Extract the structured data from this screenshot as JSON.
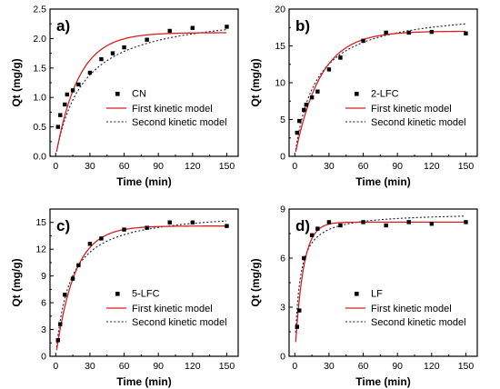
{
  "legend_labels": {
    "first": "First kinetic model",
    "second": "Second kinetic model"
  },
  "colors": {
    "first": "#d62020",
    "second": "#1a1a40",
    "points": "#000000"
  },
  "chart_data": [
    {
      "type": "scatter",
      "panel_label": "a)",
      "series_name": "CN",
      "xlabel": "Time (min)",
      "ylabel": "Qt (mg/g)",
      "xlim": [
        -5,
        160
      ],
      "ylim": [
        0,
        2.5
      ],
      "x_ticks": [
        0,
        30,
        60,
        90,
        120,
        150
      ],
      "y_ticks": [
        0.0,
        0.5,
        1.0,
        1.5,
        2.0,
        2.5
      ],
      "y_tick_labels": [
        "0.0",
        "0.5",
        "1.0",
        "1.5",
        "2.0",
        "2.5"
      ],
      "legend_position": "center-right",
      "points": {
        "x": [
          2,
          4,
          8,
          10,
          15,
          20,
          30,
          40,
          50,
          60,
          80,
          100,
          120,
          150
        ],
        "y": [
          0.5,
          0.7,
          0.88,
          1.05,
          1.12,
          1.22,
          1.42,
          1.65,
          1.75,
          1.85,
          1.98,
          2.13,
          2.18,
          2.2
        ]
      },
      "first_model": {
        "qe": 2.1,
        "k": 0.05
      },
      "second_model": {
        "qe": 2.5,
        "k": 0.0165
      },
      "grid": false
    },
    {
      "type": "scatter",
      "panel_label": "b)",
      "series_name": "2-LFC",
      "xlabel": "Time (min)",
      "ylabel": "Qt (mg/g)",
      "xlim": [
        -5,
        160
      ],
      "ylim": [
        0,
        20
      ],
      "x_ticks": [
        0,
        30,
        60,
        90,
        120,
        150
      ],
      "y_ticks": [
        0,
        5,
        10,
        15,
        20
      ],
      "y_tick_labels": [
        "0",
        "5",
        "10",
        "15",
        "20"
      ],
      "legend_position": "center-right",
      "points": {
        "x": [
          2,
          4,
          8,
          10,
          15,
          20,
          30,
          40,
          60,
          80,
          100,
          120,
          150
        ],
        "y": [
          3.2,
          4.8,
          6.3,
          7.0,
          8.0,
          8.8,
          11.8,
          13.4,
          15.7,
          16.8,
          16.8,
          16.9,
          16.7
        ]
      },
      "first_model": {
        "qe": 17.0,
        "k": 0.045
      },
      "second_model": {
        "qe": 20.2,
        "k": 0.0027
      },
      "grid": false
    },
    {
      "type": "scatter",
      "panel_label": "c)",
      "series_name": "5-LFC",
      "xlabel": "Time (min)",
      "ylabel": "Qt (mg/g)",
      "xlim": [
        -5,
        160
      ],
      "ylim": [
        0,
        16.5
      ],
      "x_ticks": [
        0,
        30,
        60,
        90,
        120,
        150
      ],
      "y_ticks": [
        0,
        3,
        6,
        9,
        12,
        15
      ],
      "y_tick_labels": [
        "0",
        "3",
        "6",
        "9",
        "12",
        "15"
      ],
      "legend_position": "center-right",
      "points": {
        "x": [
          2,
          4,
          8,
          15,
          20,
          30,
          40,
          60,
          80,
          100,
          120,
          150
        ],
        "y": [
          1.8,
          3.6,
          6.9,
          8.7,
          10.2,
          12.6,
          13.2,
          14.2,
          14.4,
          15.0,
          15.0,
          14.6
        ]
      },
      "first_model": {
        "qe": 14.6,
        "k": 0.06
      },
      "second_model": {
        "qe": 16.4,
        "k": 0.005
      },
      "grid": false
    },
    {
      "type": "scatter",
      "panel_label": "d)",
      "series_name": "LF",
      "xlabel": "Time (min)",
      "ylabel": "Qt (mg/g)",
      "xlim": [
        -5,
        160
      ],
      "ylim": [
        0,
        9
      ],
      "x_ticks": [
        0,
        30,
        60,
        90,
        120,
        150
      ],
      "y_ticks": [
        0,
        3,
        6,
        9
      ],
      "y_tick_labels": [
        "0",
        "3",
        "6",
        "9"
      ],
      "legend_position": "center-right",
      "points": {
        "x": [
          2,
          4,
          8,
          15,
          20,
          30,
          40,
          60,
          80,
          100,
          120,
          150
        ],
        "y": [
          1.8,
          2.8,
          6.0,
          7.4,
          7.8,
          8.2,
          8.0,
          8.2,
          8.0,
          8.2,
          8.1,
          8.2
        ]
      },
      "first_model": {
        "qe": 8.2,
        "k": 0.14
      },
      "second_model": {
        "qe": 8.8,
        "k": 0.028
      },
      "grid": false
    }
  ]
}
